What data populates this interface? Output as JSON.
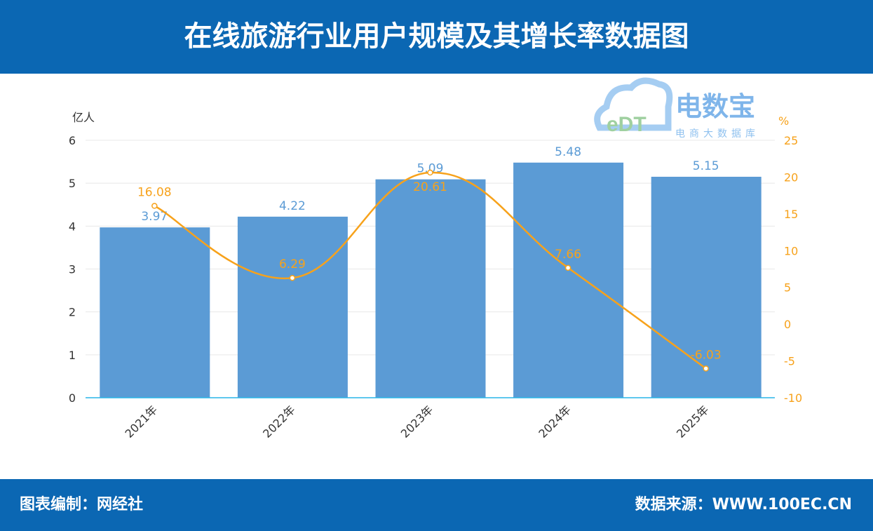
{
  "header": {
    "title": "在线旅游行业用户规模及其增长率数据图"
  },
  "footer": {
    "left": "图表编制：网经社",
    "right": "数据来源：WWW.100EC.CN"
  },
  "logo": {
    "text": "电数宝",
    "sub": "电商大数据库",
    "mark": "eDT"
  },
  "chart_data": {
    "type": "bar+line",
    "categories": [
      "2021年",
      "2022年",
      "2023年",
      "2024年",
      "2025年"
    ],
    "series": [
      {
        "type": "bar",
        "axis": "left",
        "values": [
          3.97,
          4.22,
          5.09,
          5.48,
          5.15
        ],
        "color": "#5b9bd5"
      },
      {
        "type": "line",
        "axis": "right",
        "values": [
          16.08,
          6.29,
          20.61,
          7.66,
          -6.03
        ],
        "color": "#f7a21b"
      }
    ],
    "y_left": {
      "label": "亿人",
      "ylim": [
        0,
        6
      ],
      "ticks": [
        0,
        1,
        2,
        3,
        4,
        5,
        6
      ]
    },
    "y_right": {
      "label": "%",
      "ylim": [
        -10,
        25
      ],
      "ticks": [
        -10,
        -5,
        0,
        5,
        10,
        15,
        20,
        25
      ]
    },
    "grid": true
  }
}
